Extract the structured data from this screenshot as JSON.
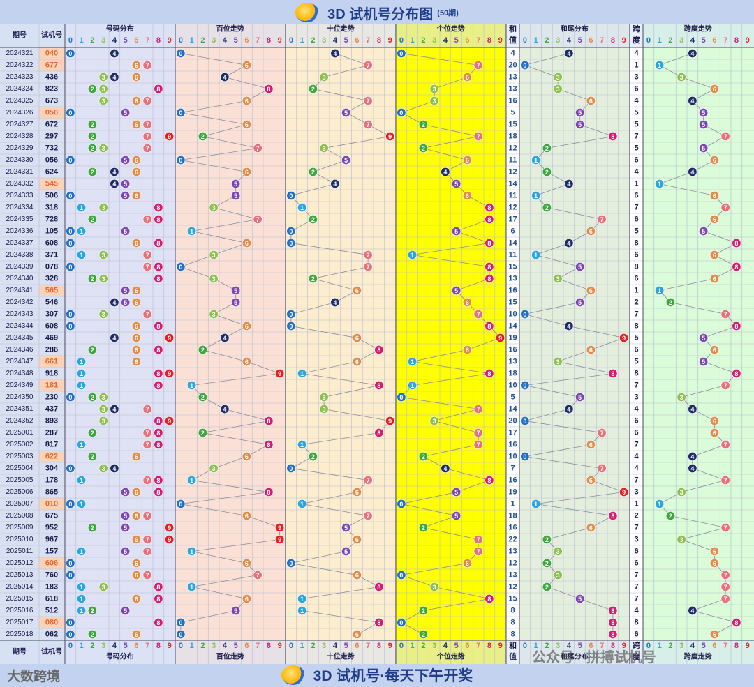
{
  "header": {
    "title": "3D 试机号分布图",
    "subtitle": "(50期)"
  },
  "footer": {
    "text": "3D 试机号·每天下午开奖"
  },
  "brand": {
    "text": "大数跨境"
  },
  "watermark": {
    "text": "公众号 · 拼搏试机号"
  },
  "colors": {
    "digits": [
      "#1f6fc6",
      "#29a6e0",
      "#3aa83a",
      "#8cc04c",
      "#1d2b66",
      "#7c45b5",
      "#e28b46",
      "#e8707a",
      "#d9186f",
      "#e81e1e"
    ],
    "sections": {
      "number": "#dfe2f4",
      "hundreds": "#fbe1d5",
      "tens": "#fdedcf",
      "units": "#ffff00",
      "sum_tail": "#e4eedd",
      "span": "#dafcd9"
    },
    "highlight_row_number": "#e6672d",
    "highlight_row_bg": "#f9d3b9"
  },
  "columns": {
    "period": "期号",
    "number": "试机号",
    "number_dist": "号码分布",
    "hundreds": "百位走势",
    "tens": "十位走势",
    "units": "个位走势",
    "sum_value_top": "和",
    "sum_value_bottom": "值",
    "sum_tail": "和尾分布",
    "span_top": "跨",
    "span_bottom": "度",
    "span_trend": "跨度走势",
    "digits": [
      "0",
      "1",
      "2",
      "3",
      "4",
      "5",
      "6",
      "7",
      "8",
      "9"
    ]
  },
  "chart_data": {
    "type": "table",
    "title": "3D 试机号分布图",
    "periods": [
      "2024321",
      "2024322",
      "2024323",
      "2024324",
      "2024325",
      "2024326",
      "2024327",
      "2024328",
      "2024329",
      "2024330",
      "2024331",
      "2024332",
      "2024333",
      "2024334",
      "2024335",
      "2024336",
      "2024337",
      "2024338",
      "2024339",
      "2024340",
      "2024341",
      "2024342",
      "2024343",
      "2024344",
      "2024345",
      "2024346",
      "2024347",
      "2024348",
      "2024349",
      "2024350",
      "2024351",
      "2024352",
      "2025001",
      "2025002",
      "2025003",
      "2025004",
      "2025005",
      "2025006",
      "2025007",
      "2025008",
      "2025009",
      "2025010",
      "2025011",
      "2025012",
      "2025013",
      "2025014",
      "2025015",
      "2025016",
      "2025017",
      "2025018"
    ],
    "numbers": [
      "040",
      "677",
      "436",
      "823",
      "673",
      "050",
      "672",
      "297",
      "732",
      "056",
      "624",
      "545",
      "506",
      "318",
      "728",
      "105",
      "608",
      "371",
      "078",
      "328",
      "565",
      "546",
      "307",
      "608",
      "469",
      "286",
      "661",
      "918",
      "181",
      "230",
      "437",
      "893",
      "287",
      "817",
      "622",
      "304",
      "178",
      "865",
      "010",
      "675",
      "952",
      "967",
      "157",
      "606",
      "760",
      "183",
      "618",
      "512",
      "080",
      "062"
    ],
    "sums": [
      4,
      20,
      13,
      13,
      16,
      5,
      15,
      18,
      12,
      11,
      12,
      14,
      11,
      12,
      17,
      6,
      14,
      11,
      15,
      13,
      16,
      15,
      10,
      14,
      19,
      16,
      13,
      18,
      10,
      5,
      14,
      20,
      17,
      16,
      10,
      7,
      16,
      19,
      1,
      18,
      16,
      22,
      13,
      12,
      13,
      12,
      15,
      8,
      8,
      8
    ],
    "spans": [
      4,
      1,
      3,
      6,
      4,
      5,
      5,
      7,
      5,
      6,
      4,
      1,
      6,
      7,
      6,
      5,
      8,
      6,
      8,
      6,
      1,
      2,
      7,
      8,
      5,
      6,
      5,
      8,
      7,
      3,
      4,
      6,
      6,
      7,
      4,
      4,
      7,
      3,
      1,
      2,
      7,
      3,
      6,
      6,
      7,
      7,
      7,
      4,
      8,
      6
    ],
    "pair_rows": [
      "040",
      "677",
      "050",
      "545",
      "565",
      "661",
      "181",
      "622",
      "010",
      "606",
      "080"
    ]
  }
}
